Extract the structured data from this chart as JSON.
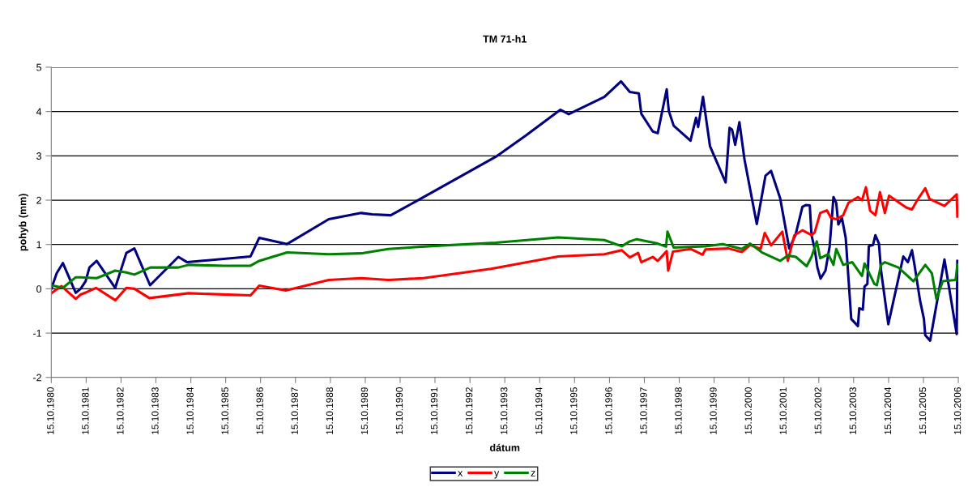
{
  "chart_data": {
    "type": "line",
    "title": "TM 71-h1",
    "xlabel": "dátum",
    "ylabel": "pohyb (mm)",
    "xlim": [
      "1980-10-15",
      "2006-10-15"
    ],
    "ylim": [
      -2,
      5
    ],
    "yticks": [
      -2,
      -1,
      0,
      1,
      2,
      3,
      4,
      5
    ],
    "xticks": [
      {
        "value": "1980-10-15",
        "label": "15.10.1980"
      },
      {
        "value": "1981-10-15",
        "label": "15.10.1981"
      },
      {
        "value": "1982-10-15",
        "label": "15.10.1982"
      },
      {
        "value": "1983-10-15",
        "label": "15.10.1983"
      },
      {
        "value": "1984-10-15",
        "label": "15.10.1984"
      },
      {
        "value": "1985-10-15",
        "label": "15.10.1985"
      },
      {
        "value": "1986-10-15",
        "label": "15.10.1986"
      },
      {
        "value": "1987-10-15",
        "label": "15.10.1987"
      },
      {
        "value": "1988-10-15",
        "label": "15.10.1988"
      },
      {
        "value": "1989-10-15",
        "label": "15.10.1989"
      },
      {
        "value": "1990-10-15",
        "label": "15.10.1990"
      },
      {
        "value": "1991-10-15",
        "label": "15.10.1991"
      },
      {
        "value": "1992-10-15",
        "label": "15.10.1992"
      },
      {
        "value": "1993-10-15",
        "label": "15.10.1993"
      },
      {
        "value": "1994-10-15",
        "label": "15.10.1994"
      },
      {
        "value": "1995-10-15",
        "label": "15.10.1995"
      },
      {
        "value": "1996-10-15",
        "label": "15.10.1996"
      },
      {
        "value": "1997-10-15",
        "label": "15.10.1997"
      },
      {
        "value": "1998-10-15",
        "label": "15.10.1998"
      },
      {
        "value": "1999-10-15",
        "label": "15.10.1999"
      },
      {
        "value": "2000-10-15",
        "label": "15.10.2000"
      },
      {
        "value": "2001-10-15",
        "label": "15.10.2001"
      },
      {
        "value": "2002-10-15",
        "label": "15.10.2002"
      },
      {
        "value": "2003-10-15",
        "label": "15.10.2003"
      },
      {
        "value": "2004-10-15",
        "label": "15.10.2004"
      },
      {
        "value": "2005-10-15",
        "label": "15.10.2005"
      },
      {
        "value": "2006-10-15",
        "label": "15.10.2006"
      }
    ],
    "grid": "y",
    "legend": "bottom",
    "marker": "none",
    "line_style": "solid",
    "series": [
      {
        "name": "x",
        "color": "#000080",
        "x": [
          "1980-10-15",
          "1980-12-10",
          "1981-02-13",
          "1981-06-28",
          "1981-08-18",
          "1981-10-09",
          "1981-11-18",
          "1982-02-02",
          "1982-08-15",
          "1982-12-10",
          "1983-03-04",
          "1983-08-15",
          "1984-06-06",
          "1984-09-06",
          "1986-07-02",
          "1986-10-01",
          "1987-07-20",
          "1988-09-28",
          "1989-09-02",
          "1989-12-24",
          "1990-07-09",
          "1991-05-16",
          "1993-07-13",
          "1994-05-23",
          "1995-05-19",
          "1995-08-15",
          "1996-08-22",
          "1997-02-13",
          "1997-05-16",
          "1997-08-18",
          "1997-09-13",
          "1998-01-11",
          "1998-03-04",
          "1998-06-06",
          "1998-06-28",
          "1998-08-18",
          "1999-02-10",
          "1999-04-09",
          "1999-05-01",
          "1999-06-21",
          "1999-09-02",
          "2000-02-13",
          "2000-03-25",
          "2000-04-20",
          "2000-05-23",
          "2000-07-06",
          "2000-08-29",
          "2001-01-04",
          "2001-04-05",
          "2001-06-03",
          "2001-09-06",
          "2001-12-10",
          "2002-02-13",
          "2002-04-27",
          "2002-06-03",
          "2002-07-13",
          "2002-07-31",
          "2002-09-02",
          "2002-10-01",
          "2002-11-03",
          "2002-12-24",
          "2003-02-06",
          "2003-03-18",
          "2003-04-16",
          "2003-05-08",
          "2003-06-14",
          "2003-07-24",
          "2003-09-20",
          "2003-11-29",
          "2003-12-13",
          "2004-01-19",
          "2004-02-06",
          "2004-03-07",
          "2004-03-22",
          "2004-05-05",
          "2004-05-30",
          "2004-07-06",
          "2004-07-28",
          "2004-10-12",
          "2005-03-18",
          "2005-05-05",
          "2005-06-17",
          "2005-07-13",
          "2005-09-09",
          "2005-10-20",
          "2005-11-03",
          "2005-12-24",
          "2006-05-23",
          "2006-09-28",
          "2006-10-05"
        ],
        "values": [
          0,
          0.35,
          0.58,
          -0.09,
          0,
          0.17,
          0.48,
          0.63,
          0.02,
          0.81,
          0.91,
          0.08,
          0.72,
          0.6,
          0.73,
          1.15,
          1.01,
          1.57,
          1.71,
          1.68,
          1.66,
          2.03,
          2.98,
          3.46,
          4.04,
          3.94,
          4.33,
          4.68,
          4.44,
          4.41,
          3.95,
          3.55,
          3.51,
          4.5,
          4.01,
          3.68,
          3.34,
          3.86,
          3.65,
          4.33,
          3.22,
          2.4,
          3.63,
          3.59,
          3.25,
          3.76,
          2.91,
          1.46,
          2.55,
          2.66,
          2.04,
          0.91,
          1.21,
          1.85,
          1.89,
          1.88,
          1.21,
          0.9,
          0.48,
          0.23,
          0.41,
          0.96,
          2.07,
          1.94,
          1.45,
          1.6,
          1.15,
          -0.68,
          -0.84,
          -0.44,
          -0.47,
          0.05,
          0.11,
          0.96,
          0.99,
          1.21,
          1.02,
          0.41,
          -0.8,
          0.73,
          0.6,
          0.87,
          0.54,
          -0.26,
          -0.68,
          -1.05,
          -1.17,
          0.66,
          -1.02,
          0.63
        ]
      },
      {
        "name": "y",
        "color": "#ff0000",
        "x": [
          "1980-10-15",
          "1981-01-30",
          "1981-06-28",
          "1981-08-18",
          "1981-10-27",
          "1982-01-26",
          "1982-08-18",
          "1982-12-10",
          "1983-03-04",
          "1983-08-08",
          "1984-09-20",
          "1986-07-02",
          "1986-10-01",
          "1987-07-06",
          "1988-09-28",
          "1989-09-02",
          "1990-06-14",
          "1991-06-14",
          "1993-05-23",
          "1995-04-27",
          "1996-08-22",
          "1997-02-21",
          "1997-05-16",
          "1997-08-11",
          "1997-09-13",
          "1998-01-11",
          "1998-03-04",
          "1998-06-06",
          "1998-06-21",
          "1998-08-11",
          "1999-02-10",
          "1999-06-17",
          "1999-07-17",
          "2000-03-15",
          "2000-07-31",
          "2000-10-27",
          "2001-02-13",
          "2001-03-29",
          "2001-06-03",
          "2001-09-28",
          "2001-11-25",
          "2002-02-02",
          "2002-04-27",
          "2002-07-31",
          "2002-09-02",
          "2002-10-30",
          "2003-01-08",
          "2003-02-21",
          "2003-04-16",
          "2003-06-28",
          "2003-08-22",
          "2003-11-29",
          "2004-01-11",
          "2004-02-21",
          "2004-04-05",
          "2004-05-30",
          "2004-07-17",
          "2004-09-06",
          "2004-10-20",
          "2005-04-20",
          "2005-06-17",
          "2005-08-11",
          "2005-11-03",
          "2005-12-17",
          "2006-05-23",
          "2006-09-28",
          "2006-10-05"
        ],
        "values": [
          -0.1,
          0.06,
          -0.23,
          -0.13,
          -0.07,
          0.02,
          -0.26,
          0.02,
          0,
          -0.21,
          -0.1,
          -0.15,
          0.07,
          -0.04,
          0.2,
          0.24,
          0.2,
          0.24,
          0.45,
          0.73,
          0.78,
          0.87,
          0.71,
          0.81,
          0.6,
          0.72,
          0.63,
          0.85,
          0.41,
          0.84,
          0.9,
          0.77,
          0.89,
          0.91,
          0.83,
          0.99,
          0.9,
          1.26,
          0.98,
          1.29,
          0.63,
          1.21,
          1.32,
          1.21,
          1.27,
          1.71,
          1.77,
          1.6,
          1.57,
          1.66,
          1.94,
          2.07,
          2.0,
          2.29,
          1.76,
          1.66,
          2.18,
          1.71,
          2.1,
          1.83,
          1.79,
          2.0,
          2.27,
          2.03,
          1.87,
          2.13,
          1.63
        ]
      },
      {
        "name": "z",
        "color": "#008000",
        "x": [
          "1980-10-15",
          "1981-02-13",
          "1981-06-28",
          "1981-08-18",
          "1982-02-02",
          "1982-08-15",
          "1982-12-10",
          "1983-03-04",
          "1983-08-18",
          "1984-06-06",
          "1984-09-20",
          "1985-09-24",
          "1986-07-02",
          "1986-10-01",
          "1987-07-20",
          "1988-09-28",
          "1989-09-02",
          "1990-06-14",
          "1991-08-11",
          "1993-07-13",
          "1995-04-27",
          "1996-08-22",
          "1997-02-21",
          "1997-05-16",
          "1997-07-28",
          "1998-03-04",
          "1998-05-30",
          "1998-06-14",
          "1998-08-18",
          "1999-07-17",
          "2000-01-15",
          "2000-07-31",
          "2000-10-27",
          "2001-02-28",
          "2001-09-06",
          "2001-11-25",
          "2002-02-17",
          "2002-06-10",
          "2002-07-31",
          "2002-09-24",
          "2002-10-30",
          "2003-01-22",
          "2003-03-18",
          "2003-04-16",
          "2003-06-28",
          "2003-10-01",
          "2004-01-11",
          "2004-02-06",
          "2004-05-19",
          "2004-06-14",
          "2004-07-28",
          "2004-09-06",
          "2005-01-26",
          "2005-07-02",
          "2005-11-03",
          "2006-01-11",
          "2006-02-28",
          "2006-05-05",
          "2006-09-17",
          "2006-10-05"
        ],
        "values": [
          0.08,
          0.02,
          0.26,
          0.26,
          0.24,
          0.41,
          0.37,
          0.32,
          0.48,
          0.48,
          0.54,
          0.52,
          0.52,
          0.63,
          0.82,
          0.78,
          0.8,
          0.9,
          0.96,
          1.04,
          1.16,
          1.1,
          0.96,
          1.07,
          1.12,
          1.02,
          0.95,
          1.29,
          0.93,
          0.96,
          1.01,
          0.9,
          1.02,
          0.82,
          0.63,
          0.75,
          0.72,
          0.51,
          0.72,
          1.07,
          0.69,
          0.78,
          0.54,
          0.9,
          0.54,
          0.6,
          0.29,
          0.57,
          0.11,
          0.08,
          0.54,
          0.6,
          0.48,
          0.17,
          0.54,
          0.35,
          -0.23,
          0.17,
          0.2,
          0.54
        ]
      }
    ]
  }
}
